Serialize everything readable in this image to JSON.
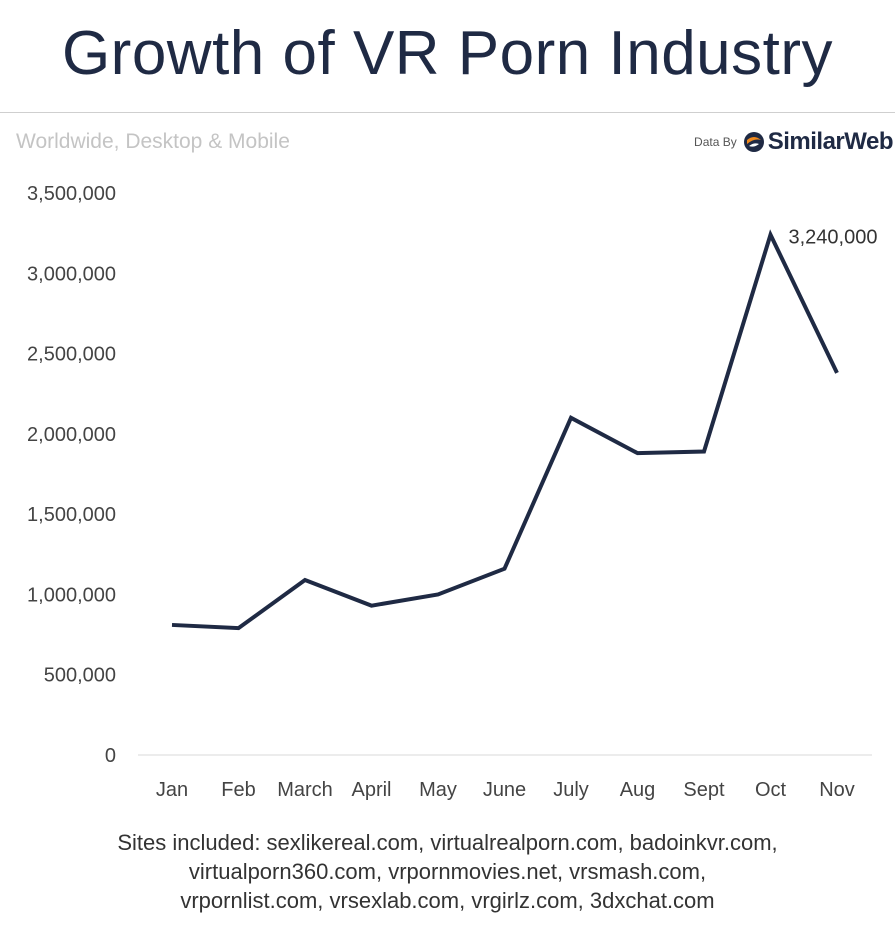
{
  "header": {
    "title": "Growth of VR Porn Industry",
    "subtitle": "Worldwide, Desktop & Mobile",
    "data_by": "Data By",
    "brand": "SimilarWeb"
  },
  "chart_data": {
    "type": "line",
    "categories": [
      "Jan",
      "Feb",
      "March",
      "April",
      "May",
      "June",
      "July",
      "Aug",
      "Sept",
      "Oct",
      "Nov"
    ],
    "series": [
      {
        "values": [
          810000,
          790000,
          1090000,
          930000,
          1000000,
          1160000,
          2100000,
          1880000,
          1890000,
          3240000,
          2380000
        ]
      }
    ],
    "ylim": [
      0,
      3500000
    ],
    "yticks": [
      0,
      500000,
      1000000,
      1500000,
      2000000,
      2500000,
      3000000,
      3500000
    ],
    "ytick_labels": [
      "0",
      "500,000",
      "1,000,000",
      "1,500,000",
      "2,000,000",
      "2,500,000",
      "3,000,000",
      "3,500,000"
    ],
    "annotations": [
      {
        "index": 9,
        "text": "3,240,000"
      }
    ],
    "grid": false,
    "line_color": "#1f2a44"
  },
  "footnote": {
    "lines": [
      "Sites included: sexlikereal.com, virtualrealporn.com, badoinkvr.com,",
      "virtualporn360.com, vrpornmovies.net, vrsmash.com,",
      "vrpornlist.com, vrsexlab.com, vrgirlz.com, 3dxchat.com"
    ]
  }
}
